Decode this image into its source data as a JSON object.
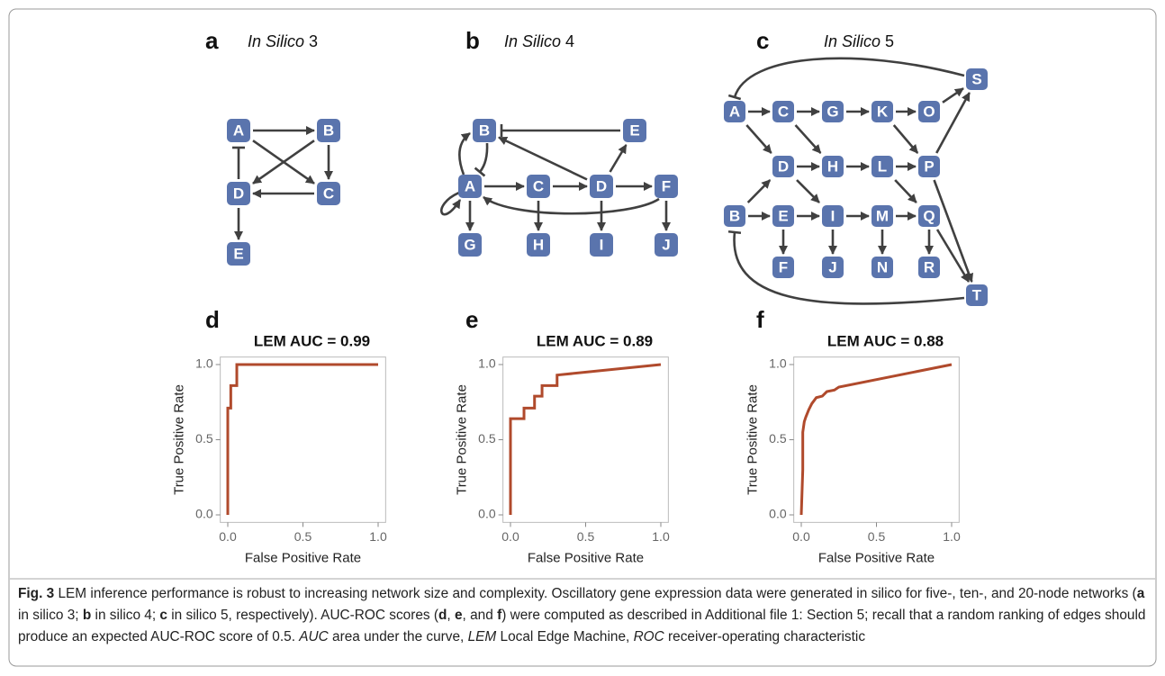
{
  "diagrams": [
    {
      "panel": "a",
      "title": "In Silico",
      "number": "3",
      "nodes": [
        "A",
        "B",
        "C",
        "D",
        "E"
      ]
    },
    {
      "panel": "b",
      "title": "In Silico",
      "number": "4",
      "nodes": [
        "A",
        "B",
        "C",
        "D",
        "E",
        "F",
        "G",
        "H",
        "I",
        "J"
      ]
    },
    {
      "panel": "c",
      "title": "In Silico",
      "number": "5",
      "nodes": [
        "A",
        "B",
        "C",
        "D",
        "E",
        "F",
        "G",
        "H",
        "I",
        "J",
        "K",
        "L",
        "M",
        "N",
        "O",
        "P",
        "Q",
        "R",
        "S",
        "T"
      ]
    }
  ],
  "chart_data": [
    {
      "type": "line",
      "panel": "d",
      "title": "LEM AUC = 0.99",
      "x_label": "False Positive Rate",
      "y_label": "True Positive Rate",
      "x": [
        0,
        0,
        0.02,
        0.02,
        0.06,
        0.06,
        1
      ],
      "values": [
        0,
        0.71,
        0.71,
        0.86,
        0.86,
        1,
        1
      ],
      "color": "#b04a2c",
      "xlim": [
        -0.05,
        1.05
      ],
      "ylim": [
        -0.05,
        1.05
      ],
      "xticks": [
        {
          "value": 0,
          "label": "0.0"
        },
        {
          "value": 0.5,
          "label": "0.5"
        },
        {
          "value": 1,
          "label": "1.0"
        }
      ],
      "yticks": [
        {
          "value": 0,
          "label": "0.0"
        },
        {
          "value": 0.5,
          "label": "0.5"
        },
        {
          "value": 1,
          "label": "1.0"
        }
      ]
    },
    {
      "type": "line",
      "panel": "e",
      "title": "LEM AUC = 0.89",
      "x_label": "False Positive Rate",
      "y_label": "True Positive Rate",
      "x": [
        0,
        0,
        0.09,
        0.09,
        0.16,
        0.16,
        0.21,
        0.21,
        0.31,
        0.31,
        1
      ],
      "values": [
        0,
        0.64,
        0.64,
        0.71,
        0.71,
        0.79,
        0.79,
        0.86,
        0.86,
        0.93,
        1
      ],
      "color": "#b04a2c",
      "xlim": [
        -0.05,
        1.05
      ],
      "ylim": [
        -0.05,
        1.05
      ],
      "xticks": [
        {
          "value": 0,
          "label": "0.0"
        },
        {
          "value": 0.5,
          "label": "0.5"
        },
        {
          "value": 1,
          "label": "1.0"
        }
      ],
      "yticks": [
        {
          "value": 0,
          "label": "0.0"
        },
        {
          "value": 0.5,
          "label": "0.5"
        },
        {
          "value": 1,
          "label": "1.0"
        }
      ]
    },
    {
      "type": "line",
      "panel": "f",
      "title": "LEM AUC = 0.88",
      "x_label": "False Positive Rate",
      "y_label": "True Positive Rate",
      "x": [
        0,
        0.01,
        0.01,
        0.02,
        0.03,
        0.05,
        0.07,
        0.1,
        0.14,
        0.17,
        0.22,
        0.25,
        1
      ],
      "values": [
        0,
        0.3,
        0.55,
        0.62,
        0.65,
        0.7,
        0.74,
        0.78,
        0.79,
        0.82,
        0.83,
        0.85,
        1
      ],
      "color": "#b04a2c",
      "xlim": [
        -0.05,
        1.05
      ],
      "ylim": [
        -0.05,
        1.05
      ],
      "xticks": [
        {
          "value": 0,
          "label": "0.0"
        },
        {
          "value": 0.5,
          "label": "0.5"
        },
        {
          "value": 1,
          "label": "1.0"
        }
      ],
      "yticks": [
        {
          "value": 0,
          "label": "0.0"
        },
        {
          "value": 0.5,
          "label": "0.5"
        },
        {
          "value": 1,
          "label": "1.0"
        }
      ]
    }
  ],
  "caption": {
    "label": "Fig. 3",
    "parts": [
      " LEM inference performance is robust to increasing network size and complexity. Oscillatory gene expression data were generated in silico for five-, ten-, and 20-node networks (",
      "a",
      " in silico 3; ",
      "b",
      " in silico 4; ",
      "c",
      " in silico 5, respectively). AUC-ROC scores (",
      "d",
      ", ",
      "e",
      ", and ",
      "f",
      ") were computed as described in Additional file 1: Section 5; recall that a random ranking of edges should produce an expected AUC-ROC score of 0.5. ",
      "AUC",
      " area under the curve, ",
      "LEM",
      " Local Edge Machine, ",
      "ROC",
      " receiver-operating characteristic"
    ]
  }
}
